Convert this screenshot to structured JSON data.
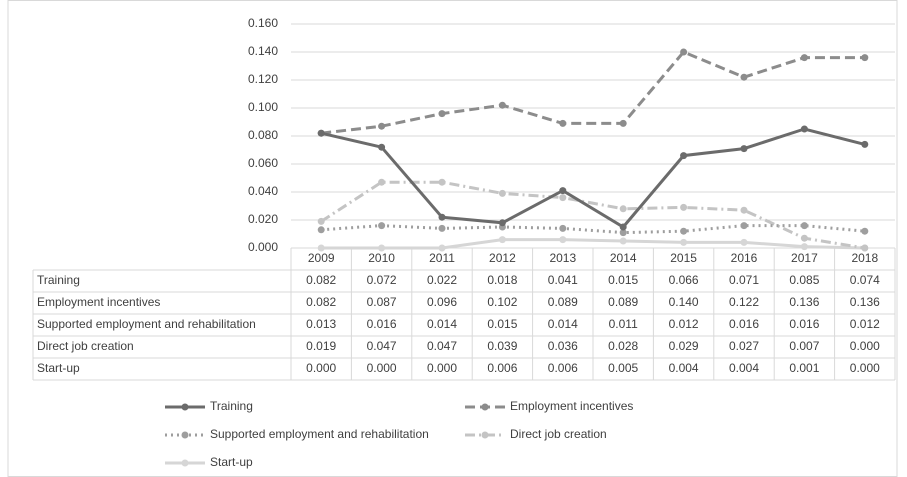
{
  "chart_data": {
    "type": "line",
    "categories": [
      "2009",
      "2010",
      "2011",
      "2012",
      "2013",
      "2014",
      "2015",
      "2016",
      "2017",
      "2018"
    ],
    "ylim": [
      0,
      0.16
    ],
    "yticks": [
      {
        "value": 0,
        "label": "0.000"
      },
      {
        "value": 0.02,
        "label": "0.020"
      },
      {
        "value": 0.04,
        "label": "0.040"
      },
      {
        "value": 0.06,
        "label": "0.060"
      },
      {
        "value": 0.08,
        "label": "0.080"
      },
      {
        "value": 0.1,
        "label": "0.100"
      },
      {
        "value": 0.12,
        "label": "0.120"
      },
      {
        "value": 0.14,
        "label": "0.140"
      },
      {
        "value": 0.16,
        "label": "0.160"
      }
    ],
    "grid": true,
    "series": [
      {
        "name": "Training",
        "color": "#6b6b6b",
        "dash": "solid",
        "values": [
          0.082,
          0.072,
          0.022,
          0.018,
          0.041,
          0.015,
          0.066,
          0.071,
          0.085,
          0.074
        ],
        "value_labels": [
          "0.082",
          "0.072",
          "0.022",
          "0.018",
          "0.041",
          "0.015",
          "0.066",
          "0.071",
          "0.085",
          "0.074"
        ]
      },
      {
        "name": "Employment incentives",
        "color": "#8c8c8c",
        "dash": "dash",
        "values": [
          0.082,
          0.087,
          0.096,
          0.102,
          0.089,
          0.089,
          0.14,
          0.122,
          0.136,
          0.136
        ],
        "value_labels": [
          "0.082",
          "0.087",
          "0.096",
          "0.102",
          "0.089",
          "0.089",
          "0.140",
          "0.122",
          "0.136",
          "0.136"
        ]
      },
      {
        "name": "Supported employment and rehabilitation",
        "color": "#9e9e9e",
        "dash": "dot",
        "values": [
          0.013,
          0.016,
          0.014,
          0.015,
          0.014,
          0.011,
          0.012,
          0.016,
          0.016,
          0.012
        ],
        "value_labels": [
          "0.013",
          "0.016",
          "0.014",
          "0.015",
          "0.014",
          "0.011",
          "0.012",
          "0.016",
          "0.016",
          "0.012"
        ]
      },
      {
        "name": "Direct job creation",
        "color": "#c4c4c4",
        "dash": "dashdot",
        "values": [
          0.019,
          0.047,
          0.047,
          0.039,
          0.036,
          0.028,
          0.029,
          0.027,
          0.007,
          0
        ],
        "value_labels": [
          "0.019",
          "0.047",
          "0.047",
          "0.039",
          "0.036",
          "0.028",
          "0.029",
          "0.027",
          "0.007",
          "0.000"
        ]
      },
      {
        "name": "Start-up",
        "color": "#d6d6d6",
        "dash": "solid",
        "values": [
          0,
          0,
          0,
          0.006,
          0.006,
          0.005,
          0.004,
          0.004,
          0.001,
          0
        ],
        "value_labels": [
          "0.000",
          "0.000",
          "0.000",
          "0.006",
          "0.006",
          "0.005",
          "0.004",
          "0.004",
          "0.001",
          "0.000"
        ]
      }
    ]
  }
}
